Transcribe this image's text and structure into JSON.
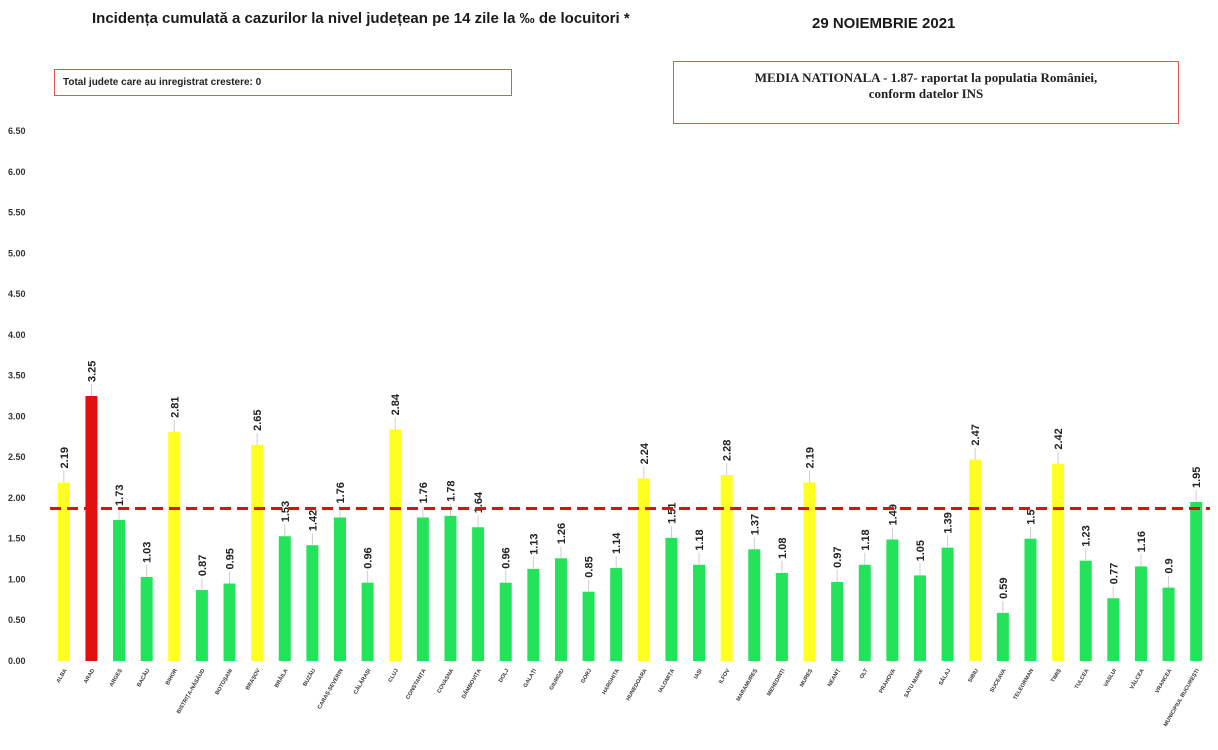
{
  "header": {
    "title": "Incidența cumulată a cazurilor la nivel județean pe 14 zile la ‰ de locuitori *",
    "date": "29 NOIEMBRIE 2021"
  },
  "notes": {
    "increase_box": "Total judete care au inregistrat crestere: 0",
    "national_line1": "MEDIA NATIONALA - 1.87-  raportat la populatia României,",
    "national_line2": "conform datelor INS"
  },
  "colors": {
    "green": "#22e35a",
    "yellow": "#ffff22",
    "red": "#e01010",
    "reference": "#e01010"
  },
  "chart_data": {
    "type": "bar",
    "ylim": [
      0,
      6.5
    ],
    "yticks": [
      "0.00",
      "0.50",
      "1.00",
      "1.50",
      "2.00",
      "2.50",
      "3.00",
      "3.50",
      "4.00",
      "4.50",
      "5.00",
      "5.50",
      "6.00",
      "6.50"
    ],
    "reference_value": 1.87,
    "grid": false,
    "categories": [
      "ALBA",
      "ARAD",
      "ARGEȘ",
      "BACĂU",
      "BIHOR",
      "BISTRIȚA-NĂSĂUD",
      "BOTOȘANI",
      "BRAȘOV",
      "BRĂILA",
      "BUZĂU",
      "CARAȘ-SEVERIN",
      "CĂLĂRAȘI",
      "CLUJ",
      "CONSTANȚA",
      "COVASNA",
      "DÂMBOVIȚA",
      "DOLJ",
      "GALAȚI",
      "GIURGIU",
      "GORJ",
      "HARGHITA",
      "HUNEDOARA",
      "IALOMIȚA",
      "IAȘI",
      "ILFOV",
      "MARAMUREȘ",
      "MEHEDINȚI",
      "MUREȘ",
      "NEAMȚ",
      "OLT",
      "PRAHOVA",
      "SATU MARE",
      "SĂLAJ",
      "SIBIU",
      "SUCEAVA",
      "TELEORMAN",
      "TIMIȘ",
      "TULCEA",
      "VASLUI",
      "VÂLCEA",
      "VRANCEA",
      "MUNICIPIUL BUCUREȘTI"
    ],
    "values": [
      2.19,
      3.25,
      1.73,
      1.03,
      2.81,
      0.87,
      0.95,
      2.65,
      1.53,
      1.42,
      1.76,
      0.96,
      2.84,
      1.76,
      1.78,
      1.64,
      0.96,
      1.13,
      1.26,
      0.85,
      1.14,
      2.24,
      1.51,
      1.18,
      2.28,
      1.37,
      1.08,
      2.19,
      0.97,
      1.18,
      1.49,
      1.05,
      1.39,
      2.47,
      0.59,
      1.5,
      2.42,
      1.23,
      0.77,
      1.16,
      0.9,
      1.95
    ],
    "value_labels": [
      "2.19",
      "3.25",
      "1.73",
      "1.03",
      "2.81",
      "0.87",
      "0.95",
      "2.65",
      "1.53",
      "1.42",
      "1.76",
      "0.96",
      "2.84",
      "1.76",
      "1.78",
      "1.64",
      "0.96",
      "1.13",
      "1.26",
      "0.85",
      "1.14",
      "2.24",
      "1.51",
      "1.18",
      "2.28",
      "1.37",
      "1.08",
      "2.19",
      "0.97",
      "1.18",
      "1.49",
      "1.05",
      "1.39",
      "2.47",
      "0.59",
      "1.5",
      "2.42",
      "1.23",
      "0.77",
      "1.16",
      "0.9",
      "1.95"
    ],
    "bar_colors": [
      "yellow",
      "red",
      "green",
      "green",
      "yellow",
      "green",
      "green",
      "yellow",
      "green",
      "green",
      "green",
      "green",
      "yellow",
      "green",
      "green",
      "green",
      "green",
      "green",
      "green",
      "green",
      "green",
      "yellow",
      "green",
      "green",
      "yellow",
      "green",
      "green",
      "yellow",
      "green",
      "green",
      "green",
      "green",
      "green",
      "yellow",
      "green",
      "green",
      "yellow",
      "green",
      "green",
      "green",
      "green",
      "green"
    ]
  }
}
